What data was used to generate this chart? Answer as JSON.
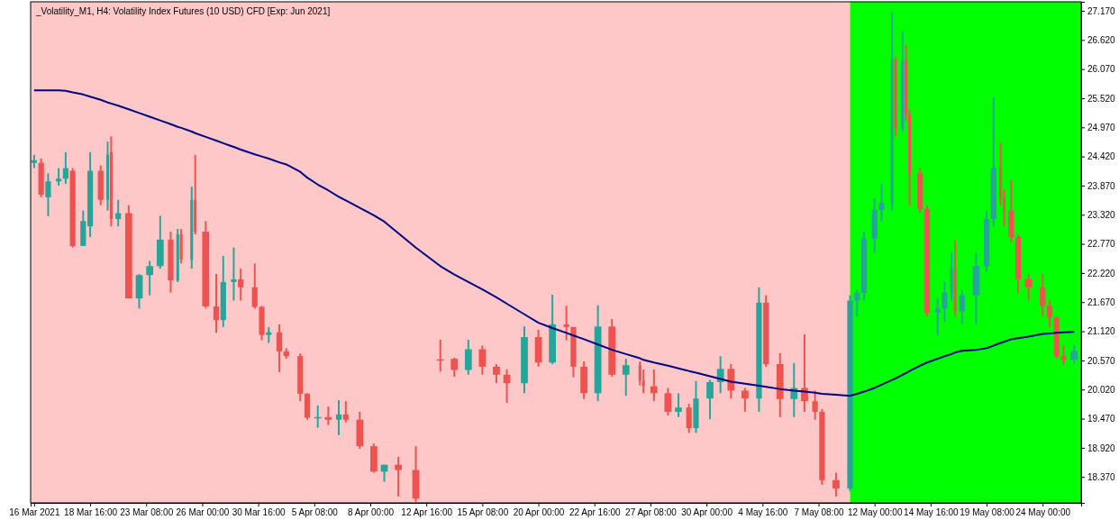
{
  "chart_data": {
    "type": "candlestick",
    "title": "_Volatility_M1, H4:  Volatility Index Futures (10 USD) CFD [Exp: Jun 2021]",
    "ylim": [
      17.88,
      27.34
    ],
    "categories": [
      "16 Mar 2021",
      null,
      null,
      null,
      null,
      null,
      null,
      null,
      null,
      null,
      null,
      null,
      null,
      null,
      null,
      null,
      "18 Mar 16:00",
      null,
      null,
      null,
      null,
      null,
      null,
      null,
      null,
      null,
      null,
      null,
      null,
      null,
      null,
      null,
      "23 Mar 08:00",
      null,
      null,
      null,
      null,
      null,
      null,
      null,
      null,
      null,
      null,
      null,
      null,
      null,
      null,
      null,
      "26 Mar 00:00",
      null,
      null,
      null,
      null,
      null,
      null,
      null,
      null,
      null,
      null,
      null,
      null,
      null,
      null,
      null,
      "30 Mar 16:00",
      null,
      null,
      null,
      null,
      null,
      null,
      null,
      null,
      null,
      null,
      null,
      null,
      null,
      null,
      null,
      "5 Apr 08:00",
      null,
      null,
      null,
      null,
      null,
      null,
      null,
      null,
      null,
      null,
      null,
      null,
      null,
      null,
      null,
      "8 Apr 00:00",
      null,
      null,
      null,
      null,
      null,
      null,
      null,
      null,
      null,
      null,
      null,
      null,
      null,
      null,
      null,
      "12 Apr 16:00",
      null,
      null,
      null,
      null,
      null,
      null,
      null,
      null,
      null,
      null,
      null,
      null,
      null,
      null,
      null,
      "15 Apr 08:00",
      null,
      null,
      null,
      null,
      null,
      null,
      null,
      null,
      null,
      null,
      null,
      null,
      null,
      null,
      null,
      "20 Apr 00:00",
      null,
      null,
      null,
      null,
      null,
      null,
      null,
      null,
      null,
      null,
      null,
      null,
      null,
      null,
      null,
      "22 Apr 16:00",
      null,
      null,
      null,
      null,
      null,
      null,
      null,
      null,
      null,
      null,
      null,
      null,
      null,
      null,
      null,
      "27 Apr 08:00",
      null,
      null,
      null,
      null,
      null,
      null,
      null,
      null,
      null,
      null,
      null,
      null,
      null,
      null,
      null,
      "30 Apr 00:00",
      null,
      null,
      null,
      null,
      null,
      null,
      null,
      null,
      null,
      null,
      null,
      null,
      null,
      null,
      null,
      "4 May 16:00",
      null,
      null,
      null,
      null,
      null,
      null,
      null,
      null,
      null,
      null,
      null,
      null,
      null,
      null,
      null,
      "7 May 08:00",
      null,
      null,
      null,
      null,
      null,
      null,
      null,
      null,
      null,
      null,
      null,
      null,
      null,
      null,
      null,
      "12 May 00:00",
      null,
      null,
      null,
      null,
      null,
      null,
      null,
      null,
      null,
      null,
      null,
      null,
      null,
      null,
      null,
      "14 May 16:00",
      null,
      null,
      null,
      null,
      null,
      null,
      null,
      null,
      null,
      null,
      null,
      null,
      null,
      null,
      null,
      "19 May 08:00",
      null,
      null,
      null,
      null,
      null,
      null,
      null,
      null,
      null,
      null,
      null,
      null,
      null,
      null,
      null,
      "24 May 00:00",
      null,
      null,
      null,
      null,
      null,
      null,
      null,
      null,
      null,
      null
    ],
    "yticks": [
      {
        "value": 18.37,
        "label": "18.370"
      },
      {
        "value": 18.92,
        "label": "18.920"
      },
      {
        "value": 19.47,
        "label": "19.470"
      },
      {
        "value": 20.02,
        "label": "20.020"
      },
      {
        "value": 20.57,
        "label": "20.570"
      },
      {
        "value": 21.12,
        "label": "21.120"
      },
      {
        "value": 21.67,
        "label": "21.670"
      },
      {
        "value": 22.22,
        "label": "22.220"
      },
      {
        "value": 22.77,
        "label": "22.770"
      },
      {
        "value": 23.32,
        "label": "23.320"
      },
      {
        "value": 23.87,
        "label": "23.870"
      },
      {
        "value": 24.42,
        "label": "24.420"
      },
      {
        "value": 24.97,
        "label": "24.970"
      },
      {
        "value": 25.52,
        "label": "25.520"
      },
      {
        "value": 26.07,
        "label": "26.070"
      },
      {
        "value": 26.62,
        "label": "26.620"
      },
      {
        "value": 27.17,
        "label": "27.170"
      }
    ],
    "ohlc": [
      [
        24.3,
        24.45,
        24.2,
        24.35
      ],
      null,
      [
        24.3,
        24.38,
        23.65,
        23.7
      ],
      null,
      [
        23.65,
        24.1,
        23.29,
        23.95
      ],
      null,
      null,
      [
        23.95,
        24.2,
        23.87,
        24.0
      ],
      null,
      [
        24.0,
        24.5,
        23.9,
        24.2
      ],
      null,
      [
        24.15,
        24.2,
        22.7,
        22.73
      ],
      null,
      null,
      [
        22.73,
        23.4,
        22.73,
        23.2
      ],
      null,
      [
        23.1,
        24.5,
        22.9,
        24.15
      ],
      null,
      null,
      [
        24.15,
        24.25,
        23.5,
        23.6
      ],
      null,
      [
        23.6,
        24.7,
        23.4,
        24.45
      ],
      [
        24.5,
        24.8,
        23.1,
        23.24
      ],
      null,
      [
        23.24,
        23.6,
        23.1,
        23.35
      ],
      null,
      null,
      [
        23.35,
        23.5,
        21.74,
        21.74
      ],
      null,
      null,
      [
        21.74,
        22.2,
        21.55,
        22.18
      ],
      null,
      null,
      [
        22.18,
        22.45,
        21.8,
        22.35
      ],
      null,
      null,
      [
        22.35,
        23.3,
        22.3,
        22.85
      ],
      null,
      null,
      [
        22.85,
        23.0,
        21.85,
        22.08
      ],
      null,
      [
        22.08,
        23.05,
        22.05,
        22.95
      ],
      [
        22.95,
        23.05,
        22.4,
        22.47
      ],
      null,
      null,
      [
        22.47,
        23.85,
        22.3,
        23.6
      ],
      [
        23.6,
        24.45,
        22.95,
        23.0
      ],
      null,
      null,
      [
        23.0,
        23.2,
        21.55,
        21.59
      ],
      null,
      null,
      [
        21.59,
        22.2,
        21.09,
        21.33
      ],
      null,
      [
        21.33,
        22.54,
        21.2,
        22.05
      ],
      null,
      null,
      [
        22.05,
        22.7,
        21.7,
        22.1
      ],
      null,
      [
        22.1,
        22.3,
        21.7,
        21.95
      ],
      null,
      null,
      null,
      [
        21.95,
        22.4,
        21.55,
        21.58
      ],
      null,
      [
        21.58,
        21.6,
        20.95,
        21.05
      ],
      null,
      [
        21.05,
        21.2,
        20.9,
        21.1
      ],
      null,
      null,
      [
        21.1,
        21.25,
        20.35,
        20.74
      ],
      null,
      [
        20.74,
        20.8,
        20.6,
        20.65
      ],
      null,
      null,
      null,
      [
        20.65,
        20.7,
        19.8,
        19.94
      ],
      null,
      [
        19.94,
        19.95,
        19.45,
        19.49
      ],
      null,
      null,
      [
        19.49,
        19.72,
        19.3,
        19.5
      ],
      null,
      null,
      [
        19.5,
        19.7,
        19.35,
        19.45
      ],
      null,
      null,
      [
        19.45,
        19.82,
        19.16,
        19.55
      ],
      null,
      [
        19.55,
        19.8,
        19.4,
        19.45
      ],
      null,
      null,
      null,
      [
        19.45,
        19.6,
        18.9,
        18.95
      ],
      null,
      null,
      null,
      [
        18.95,
        19.0,
        18.45,
        18.47
      ],
      null,
      null,
      [
        18.47,
        18.6,
        18.28,
        18.6
      ],
      null,
      null,
      null,
      [
        18.6,
        18.75,
        18.0,
        18.5
      ],
      null,
      null,
      null,
      null,
      [
        18.5,
        18.95,
        17.9,
        17.96
      ],
      null,
      null,
      null,
      null,
      null,
      null,
      [
        20.59,
        20.96,
        20.36,
        20.58
      ],
      null,
      null,
      null,
      [
        20.6,
        20.62,
        20.26,
        20.39
      ],
      null,
      null,
      null,
      [
        20.39,
        20.96,
        20.3,
        20.78
      ],
      null,
      null,
      null,
      [
        20.78,
        20.85,
        20.3,
        20.45
      ],
      null,
      null,
      null,
      [
        20.45,
        20.5,
        20.14,
        20.3
      ],
      null,
      null,
      [
        20.3,
        20.4,
        19.77,
        20.14
      ],
      null,
      null,
      null,
      null,
      [
        20.14,
        21.21,
        19.95,
        21.01
      ],
      null,
      null,
      null,
      [
        21.01,
        21.15,
        20.45,
        20.53
      ],
      null,
      null,
      null,
      [
        20.53,
        21.81,
        20.5,
        21.25
      ],
      null,
      null,
      null,
      [
        21.25,
        21.6,
        20.95,
        21.2
      ],
      null,
      [
        21.2,
        21.2,
        20.25,
        20.45
      ],
      null,
      null,
      [
        20.45,
        20.55,
        19.84,
        19.95
      ],
      null,
      null,
      null,
      [
        19.95,
        21.61,
        19.8,
        21.21
      ],
      null,
      null,
      null,
      [
        21.21,
        21.35,
        20.26,
        20.3
      ],
      null,
      null,
      null,
      [
        20.3,
        20.6,
        19.9,
        20.48
      ],
      null,
      null,
      null,
      [
        20.48,
        20.55,
        20.1,
        20.19
      ],
      [
        20.19,
        20.4,
        19.95,
        20.08
      ],
      null,
      null,
      [
        20.08,
        20.4,
        19.8,
        19.95
      ],
      null,
      null,
      null,
      [
        19.95,
        20.05,
        19.53,
        19.6
      ],
      null,
      null,
      [
        19.6,
        19.95,
        19.5,
        19.68
      ],
      null,
      null,
      [
        19.68,
        19.75,
        19.2,
        19.29
      ],
      null,
      [
        19.29,
        20.18,
        19.2,
        19.85
      ],
      null,
      null,
      null,
      [
        19.85,
        20.2,
        19.46,
        20.16
      ],
      null,
      null,
      [
        20.16,
        20.65,
        19.95,
        20.41
      ],
      null,
      null,
      [
        20.41,
        20.5,
        19.85,
        20.0
      ],
      null,
      null,
      null,
      [
        20.0,
        20.05,
        19.6,
        19.85
      ],
      null,
      null,
      null,
      [
        19.85,
        21.95,
        19.6,
        21.66
      ],
      null,
      [
        21.66,
        21.8,
        20.45,
        20.5
      ],
      null,
      null,
      null,
      [
        20.5,
        20.71,
        19.5,
        19.84
      ],
      null,
      null,
      null,
      [
        19.84,
        20.52,
        19.5,
        20.05
      ],
      null,
      null,
      [
        20.05,
        21.06,
        19.6,
        19.8
      ],
      null,
      null,
      [
        19.8,
        20.0,
        19.45,
        19.6
      ],
      null,
      [
        19.6,
        19.65,
        18.22,
        18.31
      ],
      null,
      null,
      null,
      [
        18.31,
        18.45,
        18.0,
        18.15
      ],
      null,
      null,
      null,
      [
        18.15,
        21.8,
        18.1,
        21.7
      ],
      null,
      [
        21.7,
        21.9,
        21.4,
        21.84
      ],
      null,
      [
        21.84,
        23.0,
        21.7,
        22.87
      ],
      null,
      null,
      [
        22.87,
        23.63,
        22.6,
        23.41
      ],
      null,
      [
        23.41,
        23.9,
        23.2,
        23.54
      ],
      null,
      null,
      [
        23.54,
        27.15,
        23.4,
        26.25
      ],
      [
        26.25,
        26.3,
        24.8,
        24.95
      ],
      null,
      [
        24.95,
        26.78,
        24.9,
        26.22
      ],
      [
        26.22,
        26.52,
        25.1,
        25.21
      ],
      [
        25.21,
        25.3,
        23.49,
        24.1
      ],
      null,
      null,
      [
        24.1,
        24.2,
        23.35,
        23.43
      ],
      null,
      [
        23.43,
        23.5,
        21.4,
        21.47
      ],
      null,
      null,
      [
        21.47,
        21.75,
        21.05,
        21.55
      ],
      null,
      [
        21.55,
        22.05,
        21.3,
        21.85
      ],
      null,
      [
        21.85,
        22.6,
        21.7,
        22.3
      ],
      [
        22.3,
        22.83,
        21.4,
        21.5
      ],
      null,
      [
        21.5,
        21.9,
        21.25,
        21.8
      ],
      null,
      null,
      null,
      [
        21.8,
        22.6,
        21.25,
        22.35
      ],
      null,
      null,
      [
        22.35,
        23.4,
        22.25,
        23.24
      ],
      null,
      [
        23.24,
        25.54,
        23.1,
        24.2
      ],
      null,
      [
        24.2,
        24.68,
        23.5,
        23.63
      ],
      [
        23.63,
        23.8,
        23.1,
        23.4
      ],
      null,
      [
        23.4,
        23.97,
        22.8,
        22.9
      ],
      null,
      [
        22.9,
        22.95,
        21.84,
        22.1
      ],
      null,
      null,
      [
        22.1,
        22.2,
        21.7,
        21.95
      ],
      null,
      null,
      null,
      [
        21.95,
        22.2,
        21.4,
        21.6
      ],
      null,
      [
        21.6,
        21.7,
        21.2,
        21.38
      ],
      null,
      [
        21.38,
        21.4,
        20.6,
        20.65
      ],
      null,
      [
        20.65,
        20.85,
        20.48,
        20.58
      ],
      null,
      null,
      [
        20.58,
        20.86,
        20.5,
        20.75
      ],
      null
    ],
    "colors": [
      "#26a69a",
      null,
      "#ef5350",
      null,
      "#26a69a",
      null,
      null,
      "#26a69a",
      null,
      "#26a69a",
      null,
      "#ef5350",
      null,
      null,
      "#26a69a",
      null,
      "#26a69a",
      null,
      null,
      "#ef5350",
      null,
      "#26a69a",
      "#ef5350",
      null,
      "#26a69a",
      null,
      null,
      "#ef5350",
      null,
      null,
      "#26a69a",
      null,
      null,
      "#26a69a",
      null,
      null,
      "#26a69a",
      null,
      null,
      "#ef5350",
      null,
      "#26a69a",
      "#ef5350",
      null,
      null,
      "#26a69a",
      "#ef5350",
      null,
      null,
      "#ef5350",
      null,
      null,
      "#ef5350",
      null,
      "#26a69a",
      null,
      null,
      "#26a69a",
      null,
      "#ef5350",
      null,
      null,
      null,
      "#ef5350",
      null,
      "#ef5350",
      null,
      "#26a69a",
      null,
      null,
      "#ef5350",
      null,
      "#ef5350",
      null,
      null,
      null,
      "#ef5350",
      null,
      "#ef5350",
      null,
      null,
      "#26a69a",
      null,
      null,
      "#ef5350",
      null,
      null,
      "#26a69a",
      null,
      "#ef5350",
      null,
      null,
      null,
      "#ef5350",
      null,
      null,
      null,
      "#ef5350",
      null,
      null,
      "#26a69a",
      null,
      null,
      null,
      "#ef5350",
      null,
      null,
      null,
      null,
      "#ef5350",
      null,
      null,
      null,
      null,
      null,
      null,
      "#ef5350",
      null,
      null,
      null,
      "#ef5350",
      null,
      null,
      null,
      "#26a69a",
      null,
      null,
      null,
      "#ef5350",
      null,
      null,
      null,
      "#ef5350",
      null,
      null,
      "#ef5350",
      null,
      null,
      null,
      null,
      "#26a69a",
      null,
      null,
      null,
      "#ef5350",
      null,
      null,
      null,
      "#26a69a",
      null,
      null,
      null,
      "#ef5350",
      null,
      "#ef5350",
      null,
      null,
      "#ef5350",
      null,
      null,
      null,
      "#26a69a",
      null,
      null,
      null,
      "#ef5350",
      null,
      null,
      null,
      "#26a69a",
      null,
      null,
      null,
      "#ef5350",
      "#ef5350",
      null,
      null,
      "#ef5350",
      null,
      null,
      null,
      "#ef5350",
      null,
      null,
      "#26a69a",
      null,
      null,
      "#ef5350",
      null,
      "#26a69a",
      null,
      null,
      null,
      "#26a69a",
      null,
      null,
      "#26a69a",
      null,
      null,
      "#ef5350",
      null,
      null,
      null,
      "#ef5350",
      null,
      null,
      null,
      "#26a69a",
      null,
      "#ef5350",
      null,
      null,
      null,
      "#ef5350",
      null,
      null,
      null,
      "#26a69a",
      null,
      null,
      "#ef5350",
      null,
      null,
      "#ef5350",
      null,
      "#ef5350",
      null,
      null,
      null,
      "#ef5350",
      null,
      null,
      null,
      "#26a69a",
      null,
      "#26a69a",
      null,
      "#26a69a",
      null,
      null,
      "#26a69a",
      null,
      "#26a69a",
      null,
      null,
      "#26a69a",
      "#ef5350",
      null,
      "#26a69a",
      "#ef5350",
      "#ef5350",
      null,
      null,
      "#ef5350",
      null,
      "#ef5350",
      null,
      null,
      "#26a69a",
      null,
      "#26a69a",
      null,
      "#26a69a",
      "#ef5350",
      null,
      "#26a69a",
      null,
      null,
      null,
      "#26a69a",
      null,
      null,
      "#26a69a",
      null,
      "#26a69a",
      null,
      "#ef5350",
      "#ef5350",
      null,
      "#ef5350",
      null,
      "#ef5350",
      null,
      null,
      "#ef5350",
      null,
      null,
      null,
      "#ef5350",
      null,
      "#ef5350",
      null,
      "#ef5350",
      null,
      "#ef5350",
      null,
      null,
      "#26a69a",
      null
    ],
    "series": [
      {
        "type": "line",
        "color": "#000080",
        "values": [
          25.67,
          null,
          25.67,
          null,
          25.67,
          null,
          null,
          25.67,
          null,
          25.66,
          null,
          25.63,
          null,
          null,
          25.59,
          null,
          25.55,
          null,
          null,
          25.49,
          null,
          25.44,
          25.42,
          null,
          25.38,
          null,
          null,
          25.31,
          null,
          null,
          25.24,
          null,
          null,
          25.17,
          null,
          null,
          25.1,
          null,
          null,
          25.03,
          null,
          24.98,
          24.96,
          null,
          null,
          24.89,
          24.86,
          null,
          null,
          24.79,
          null,
          null,
          24.72,
          null,
          24.67,
          null,
          null,
          24.6,
          null,
          24.55,
          null,
          null,
          null,
          24.46,
          null,
          24.42,
          null,
          24.38,
          null,
          null,
          24.31,
          null,
          24.27,
          null,
          null,
          null,
          24.13,
          null,
          24.02,
          null,
          null,
          23.89,
          null,
          null,
          23.78,
          null,
          null,
          23.66,
          null,
          23.59,
          null,
          null,
          null,
          23.45,
          null,
          null,
          null,
          23.31,
          null,
          null,
          23.19,
          null,
          null,
          null,
          22.97,
          null,
          null,
          null,
          null,
          22.7,
          null,
          null,
          null,
          null,
          null,
          null,
          22.35,
          null,
          null,
          null,
          22.19,
          null,
          null,
          null,
          22.05,
          null,
          null,
          null,
          21.91,
          null,
          null,
          null,
          21.76,
          null,
          null,
          21.64,
          null,
          null,
          null,
          null,
          21.44,
          null,
          null,
          null,
          21.28,
          null,
          null,
          null,
          21.18,
          null,
          null,
          null,
          21.09,
          null,
          21.04,
          null,
          null,
          20.97,
          null,
          null,
          null,
          20.87,
          null,
          null,
          null,
          20.77,
          null,
          null,
          null,
          20.69,
          null,
          null,
          null,
          20.61,
          20.58,
          null,
          null,
          20.53,
          null,
          null,
          null,
          20.47,
          null,
          null,
          20.42,
          null,
          null,
          20.37,
          null,
          20.34,
          null,
          null,
          null,
          20.27,
          null,
          null,
          20.22,
          null,
          null,
          20.17,
          null,
          null,
          null,
          20.13,
          null,
          null,
          null,
          20.09,
          null,
          20.07,
          null,
          null,
          null,
          20.03,
          null,
          null,
          null,
          20.0,
          null,
          null,
          19.98,
          null,
          null,
          19.96,
          null,
          19.94,
          null,
          null,
          null,
          19.92,
          null,
          null,
          null,
          19.9,
          null,
          19.94,
          null,
          19.98,
          null,
          null,
          20.05,
          null,
          20.11,
          null,
          null,
          20.2,
          20.23,
          null,
          20.3,
          20.33,
          20.37,
          null,
          null,
          20.47,
          null,
          20.53,
          null,
          null,
          20.6,
          null,
          20.65,
          null,
          20.69,
          20.72,
          null,
          20.75,
          null,
          null,
          null,
          20.77,
          null,
          null,
          20.8,
          null,
          20.85,
          null,
          20.9,
          20.92,
          null,
          20.97,
          null,
          20.99,
          null,
          null,
          21.02,
          null,
          null,
          null,
          21.07,
          null,
          21.08,
          null,
          21.09,
          null,
          21.1,
          null,
          null,
          21.11,
          null
        ]
      }
    ]
  }
}
